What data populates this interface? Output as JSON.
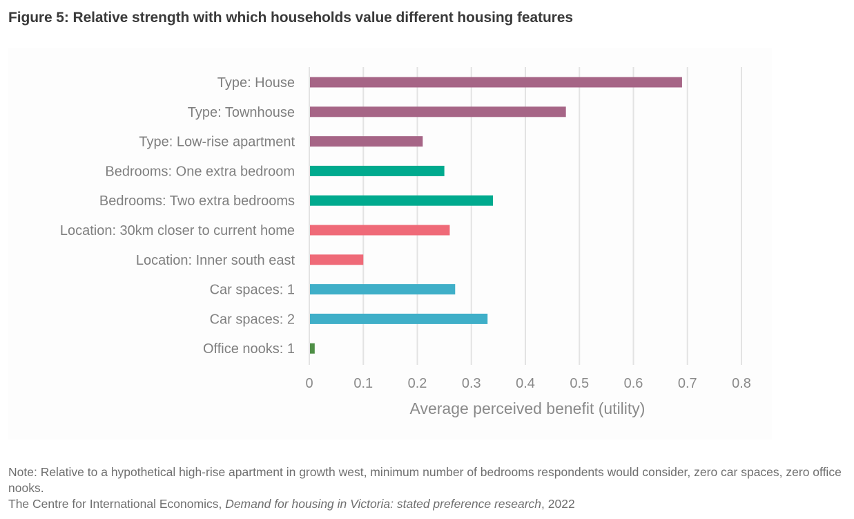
{
  "figure": {
    "title": "Figure 5: Relative strength with which households value different housing features"
  },
  "footer": {
    "note": "Note: Relative to a hypothetical high-rise apartment in growth west, minimum number of bedrooms respondents would consider, zero car spaces, zero office nooks.",
    "source_prefix": "The Centre for International Economics, ",
    "source_title": "Demand for housing in Victoria: stated preference research",
    "source_suffix": ", 2022"
  },
  "chart_data": {
    "type": "bar",
    "orientation": "horizontal",
    "title": "Relative strength with which households value different housing features",
    "xlabel": "Average perceived benefit (utility)",
    "ylabel": "",
    "xlim": [
      0,
      0.8
    ],
    "xticks": [
      0,
      0.1,
      0.2,
      0.3,
      0.4,
      0.5,
      0.6,
      0.7,
      0.8
    ],
    "xtick_labels": [
      "0",
      "0.1",
      "0.2",
      "0.3",
      "0.4",
      "0.5",
      "0.6",
      "0.7",
      "0.8"
    ],
    "grid": "vertical",
    "legend": "none",
    "categories": [
      "Type: House",
      "Type: Townhouse",
      "Type: Low-rise apartment",
      "Bedrooms: One extra bedroom",
      "Bedrooms: Two extra bedrooms",
      "Location: 30km closer to current home",
      "Location: Inner south east",
      "Car spaces: 1",
      "Car spaces: 2",
      "Office nooks: 1"
    ],
    "values": [
      0.69,
      0.475,
      0.21,
      0.25,
      0.34,
      0.26,
      0.1,
      0.27,
      0.33,
      0.01
    ],
    "groups": [
      "Type",
      "Type",
      "Type",
      "Bedrooms",
      "Bedrooms",
      "Location",
      "Location",
      "Car spaces",
      "Car spaces",
      "Office nooks"
    ],
    "group_colors": {
      "Type": "#a66586",
      "Bedrooms": "#00aa8e",
      "Location": "#ef6a78",
      "Car spaces": "#3fafc8",
      "Office nooks": "#4f8f46"
    },
    "gridline_color": "#e3e3e3"
  }
}
